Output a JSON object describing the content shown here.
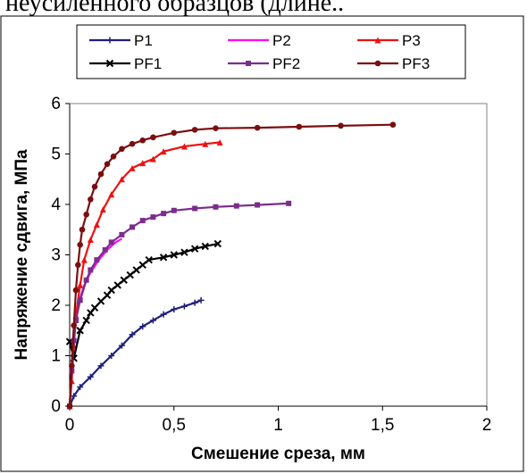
{
  "caption_fragment": "неусиленного образцов (длине..",
  "chart_data": {
    "type": "line",
    "title": "",
    "xlabel": "Смешение среза, мм",
    "ylabel": "Напряжение сдвига, МПа",
    "xlim": [
      0,
      2
    ],
    "ylim": [
      0,
      6
    ],
    "xticks": [
      "0",
      "0,5",
      "1",
      "1,5",
      "2"
    ],
    "yticks": [
      "0",
      "1",
      "2",
      "3",
      "4",
      "5",
      "6"
    ],
    "grid": false,
    "legend_position": "top",
    "series": [
      {
        "name": "P1",
        "color": "#1f1f7a",
        "marker": "plus",
        "points": [
          [
            0,
            0
          ],
          [
            0.02,
            0.2
          ],
          [
            0.05,
            0.38
          ],
          [
            0.1,
            0.58
          ],
          [
            0.15,
            0.8
          ],
          [
            0.2,
            1.0
          ],
          [
            0.25,
            1.2
          ],
          [
            0.3,
            1.42
          ],
          [
            0.35,
            1.58
          ],
          [
            0.4,
            1.7
          ],
          [
            0.45,
            1.82
          ],
          [
            0.5,
            1.92
          ],
          [
            0.55,
            1.98
          ],
          [
            0.6,
            2.05
          ],
          [
            0.63,
            2.1
          ]
        ]
      },
      {
        "name": "P2",
        "color": "#ff00ff",
        "marker": "none",
        "points": [
          [
            0,
            0
          ],
          [
            0.01,
            0.8
          ],
          [
            0.02,
            1.5
          ],
          [
            0.04,
            2.0
          ],
          [
            0.07,
            2.4
          ],
          [
            0.1,
            2.65
          ],
          [
            0.14,
            2.9
          ],
          [
            0.18,
            3.1
          ],
          [
            0.22,
            3.25
          ],
          [
            0.25,
            3.32
          ]
        ]
      },
      {
        "name": "P3",
        "color": "#ee1111",
        "marker": "triangle",
        "points": [
          [
            0,
            0
          ],
          [
            0.01,
            0.5
          ],
          [
            0.02,
            1.2
          ],
          [
            0.03,
            1.8
          ],
          [
            0.05,
            2.4
          ],
          [
            0.07,
            2.9
          ],
          [
            0.1,
            3.3
          ],
          [
            0.13,
            3.6
          ],
          [
            0.16,
            3.9
          ],
          [
            0.2,
            4.2
          ],
          [
            0.25,
            4.5
          ],
          [
            0.3,
            4.72
          ],
          [
            0.35,
            4.82
          ],
          [
            0.4,
            4.9
          ],
          [
            0.45,
            5.05
          ],
          [
            0.55,
            5.15
          ],
          [
            0.65,
            5.2
          ],
          [
            0.72,
            5.23
          ]
        ]
      },
      {
        "name": "PF1",
        "color": "#000000",
        "marker": "x",
        "points": [
          [
            0,
            1.28
          ],
          [
            0.02,
            0.95
          ],
          [
            0.05,
            1.5
          ],
          [
            0.08,
            1.7
          ],
          [
            0.1,
            1.85
          ],
          [
            0.12,
            1.95
          ],
          [
            0.15,
            2.08
          ],
          [
            0.18,
            2.2
          ],
          [
            0.2,
            2.3
          ],
          [
            0.23,
            2.4
          ],
          [
            0.26,
            2.5
          ],
          [
            0.29,
            2.6
          ],
          [
            0.32,
            2.7
          ],
          [
            0.35,
            2.8
          ],
          [
            0.38,
            2.9
          ],
          [
            0.45,
            2.95
          ],
          [
            0.5,
            3.0
          ],
          [
            0.55,
            3.05
          ],
          [
            0.6,
            3.12
          ],
          [
            0.65,
            3.17
          ],
          [
            0.71,
            3.22
          ]
        ]
      },
      {
        "name": "PF2",
        "color": "#7b2d8b",
        "marker": "square",
        "points": [
          [
            0,
            0
          ],
          [
            0.01,
            0.7
          ],
          [
            0.02,
            1.3
          ],
          [
            0.03,
            1.7
          ],
          [
            0.05,
            2.1
          ],
          [
            0.08,
            2.5
          ],
          [
            0.1,
            2.7
          ],
          [
            0.13,
            2.9
          ],
          [
            0.17,
            3.1
          ],
          [
            0.2,
            3.25
          ],
          [
            0.25,
            3.4
          ],
          [
            0.3,
            3.55
          ],
          [
            0.35,
            3.68
          ],
          [
            0.4,
            3.75
          ],
          [
            0.45,
            3.82
          ],
          [
            0.5,
            3.88
          ],
          [
            0.6,
            3.92
          ],
          [
            0.7,
            3.95
          ],
          [
            0.8,
            3.97
          ],
          [
            0.9,
            3.99
          ],
          [
            1.05,
            4.02
          ]
        ]
      },
      {
        "name": "PF3",
        "color": "#7a0f0f",
        "marker": "circle",
        "points": [
          [
            0,
            0
          ],
          [
            0.01,
            0.8
          ],
          [
            0.02,
            1.6
          ],
          [
            0.03,
            2.3
          ],
          [
            0.04,
            2.8
          ],
          [
            0.05,
            3.2
          ],
          [
            0.06,
            3.5
          ],
          [
            0.08,
            3.8
          ],
          [
            0.1,
            4.1
          ],
          [
            0.12,
            4.35
          ],
          [
            0.15,
            4.6
          ],
          [
            0.18,
            4.8
          ],
          [
            0.21,
            4.95
          ],
          [
            0.25,
            5.1
          ],
          [
            0.3,
            5.2
          ],
          [
            0.35,
            5.27
          ],
          [
            0.4,
            5.33
          ],
          [
            0.5,
            5.42
          ],
          [
            0.6,
            5.48
          ],
          [
            0.7,
            5.51
          ],
          [
            0.9,
            5.52
          ],
          [
            1.1,
            5.54
          ],
          [
            1.3,
            5.56
          ],
          [
            1.55,
            5.58
          ]
        ]
      }
    ]
  }
}
